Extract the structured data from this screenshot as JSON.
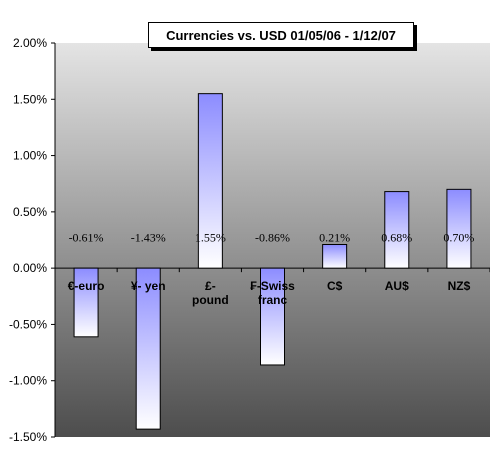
{
  "chart_data": {
    "type": "bar",
    "title": "Currencies vs. USD 01/05/06 - 1/12/07",
    "xlabel": "",
    "ylabel": "",
    "categories": [
      "€-euro",
      "¥- yen",
      "£-pound",
      "₣-Swiss franc",
      "C$",
      "AU$",
      "NZ$"
    ],
    "category_lines": [
      [
        "€-euro"
      ],
      [
        "¥- yen"
      ],
      [
        "£-",
        "pound"
      ],
      [
        "₣-Swiss",
        "franc"
      ],
      [
        "C$"
      ],
      [
        "AU$"
      ],
      [
        "NZ$"
      ]
    ],
    "series": [
      {
        "values": [
          -0.61,
          -1.43,
          1.55,
          -0.86,
          0.21,
          0.68,
          0.7
        ]
      }
    ],
    "data_labels": [
      "-0.61%",
      "-1.43%",
      "1.55%",
      "-0.86%",
      "0.21%",
      "0.68%",
      "0.70%"
    ],
    "yticks": [
      2.0,
      1.5,
      1.0,
      0.5,
      0.0,
      -0.5,
      -1.0,
      -1.5
    ],
    "ytick_labels": [
      "2.00%",
      "1.50%",
      "1.00%",
      "0.50%",
      "0.00%",
      "-0.50%",
      "-1.00%",
      "-1.50%"
    ],
    "ylim": [
      -1.5,
      2.0
    ],
    "grid": false,
    "legend": "none"
  },
  "colors": {
    "bar_top": "#8c8cff",
    "bar_bottom": "#ffffff",
    "plot_bg_top": "#e4e4e4",
    "plot_bg_bottom": "#4d4d4d",
    "axis": "#000000"
  }
}
